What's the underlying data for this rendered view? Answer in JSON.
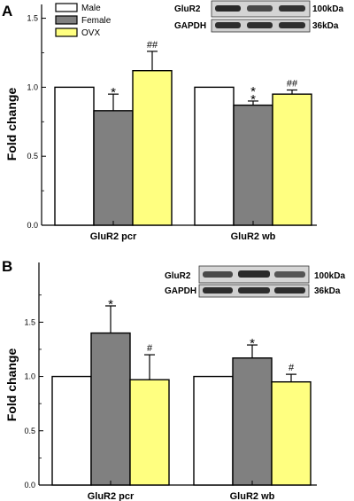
{
  "chart_data": [
    {
      "type": "bar",
      "panel_label": "A",
      "ylabel": "Fold change",
      "ylim": [
        0,
        1.6
      ],
      "yticks": [
        "0.0",
        "0.5",
        "1.0",
        "1.5"
      ],
      "ytick_values": [
        0,
        0.5,
        1.0,
        1.5
      ],
      "categories": [
        "GluR2 pcr",
        "GluR2 wb"
      ],
      "series": [
        {
          "name": "Male",
          "color": "#ffffff",
          "values": [
            1.0,
            1.0
          ],
          "errors": [
            0,
            0
          ],
          "marks": [
            "",
            ""
          ]
        },
        {
          "name": "Female",
          "color": "#808080",
          "values": [
            0.83,
            0.87
          ],
          "errors": [
            0.12,
            0.03
          ],
          "marks": [
            "*",
            "*\n*"
          ]
        },
        {
          "name": "OVX",
          "color": "#ffff80",
          "values": [
            1.12,
            0.95
          ],
          "errors": [
            0.14,
            0.03
          ],
          "marks": [
            "##",
            "##"
          ]
        }
      ],
      "legend": {
        "position": "top-left",
        "items": [
          "Male",
          "Female",
          "OVX"
        ]
      },
      "blot": {
        "rows": [
          "GluR2",
          "GAPDH"
        ],
        "sizes": [
          "100kDa",
          "36kDa"
        ]
      }
    },
    {
      "type": "bar",
      "panel_label": "B",
      "ylabel": "Fold change",
      "ylim": [
        0,
        2.05
      ],
      "yticks": [
        "0.0",
        "0.5",
        "1.0",
        "1.5"
      ],
      "ytick_values": [
        0,
        0.5,
        1.0,
        1.5
      ],
      "categories": [
        "GluR2 pcr",
        "GluR2 wb"
      ],
      "series": [
        {
          "name": "Male",
          "color": "#ffffff",
          "values": [
            1.0,
            1.0
          ],
          "errors": [
            0,
            0
          ],
          "marks": [
            "",
            ""
          ]
        },
        {
          "name": "Female",
          "color": "#808080",
          "values": [
            1.4,
            1.17
          ],
          "errors": [
            0.25,
            0.12
          ],
          "marks": [
            "*",
            "*"
          ]
        },
        {
          "name": "OVX",
          "color": "#ffff80",
          "values": [
            0.97,
            0.95
          ],
          "errors": [
            0.23,
            0.07
          ],
          "marks": [
            "#",
            "#"
          ]
        }
      ],
      "blot": {
        "rows": [
          "GluR2",
          "GAPDH"
        ],
        "sizes": [
          "100kDa",
          "36kDa"
        ]
      }
    }
  ]
}
